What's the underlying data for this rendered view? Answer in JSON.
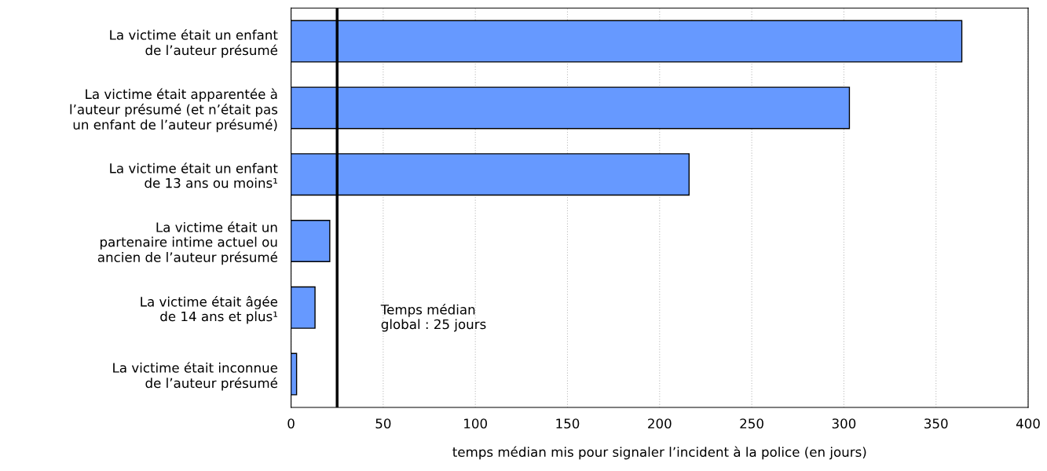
{
  "chart_data": {
    "type": "bar",
    "orientation": "horizontal",
    "xlabel": "temps médian mis pour signaler l’incident à la police (en jours)",
    "categories": [
      "La victime était un enfant\nde l’auteur présumé",
      "La victime était apparentée à\nl’auteur présumé (et n’était pas\nun enfant de l’auteur présumé)",
      "La victime était un enfant\nde 13 ans ou moins¹",
      "La victime était un\npartenaire intime actuel ou\nancien de l’auteur présumé",
      "La victime était âgée\nde 14 ans et plus¹",
      "La victime était inconnue\nde l’auteur présumé"
    ],
    "values": [
      364,
      303,
      216,
      21,
      13,
      3
    ],
    "color": "#6699ff",
    "xlim": [
      0,
      400
    ],
    "xticks": [
      0,
      50,
      100,
      150,
      200,
      250,
      300,
      350,
      400
    ],
    "grid": "x",
    "ref_lines": [
      {
        "axis": "x",
        "value": 25,
        "label": "Temps médian\nglobal : 25 jours",
        "color": "#000000"
      }
    ]
  }
}
